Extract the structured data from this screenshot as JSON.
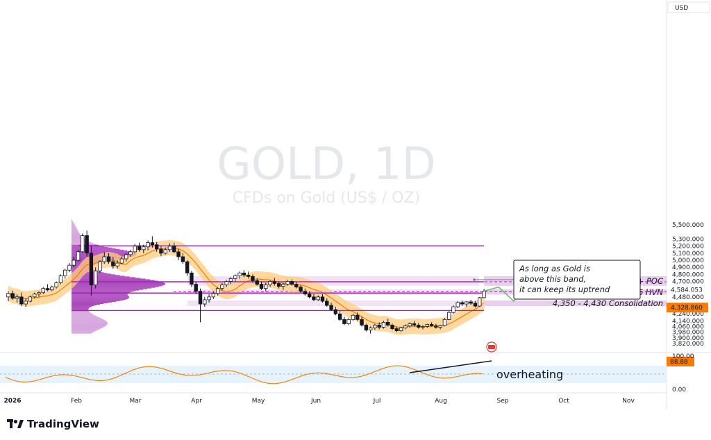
{
  "chart_data": {
    "type": "candlestick",
    "watermark": "GOLD, 1D",
    "subtitle_watermark": "CFDs on Gold (US$ / OZ)",
    "currency": "USD",
    "price_axis": {
      "ylim": [
        3760,
        5680
      ],
      "ticks": [
        "5,500.000",
        "5,300.000",
        "5,200.000",
        "5,100.000",
        "5,000.000",
        "4,900.000",
        "4,800.000",
        "4,700.000",
        "4,480.000",
        "4,360.000",
        "4,240.000",
        "4,140.000",
        "4,060.000",
        "3,980.000",
        "3,900.000",
        "3,820.000"
      ]
    },
    "price_badges": [
      {
        "label": "4,584.053",
        "value": 4584.053,
        "style": "dark"
      },
      {
        "label": "4,328.860",
        "value": 4328.86,
        "style": "orange"
      }
    ],
    "time_axis": [
      "2026",
      "Feb",
      "Mar",
      "Apr",
      "May",
      "Jun",
      "Jul",
      "Aug",
      "Sep",
      "Oct",
      "Nov"
    ],
    "zones": [
      {
        "label": "4,638 - 4,773 High + POC",
        "low": 4638,
        "high": 4773
      },
      {
        "label": "4,513 - 4,586 HVN",
        "low": 4513,
        "high": 4586
      },
      {
        "label": "4,350 - 4,430 Consolidation",
        "low": 4350,
        "high": 4430
      }
    ],
    "levels": [
      5205,
      4695,
      4535,
      4287
    ],
    "annotation": "As long as Gold is\nabove this band,\nit can keep its uptrend",
    "oscillator": {
      "value_label": "88.88",
      "value": 88.88,
      "scale_labels": [
        "100.00",
        "0.00"
      ],
      "label": "overheating"
    },
    "brand": "TradingView",
    "candles_ohlc": [
      [
        4480,
        4560,
        4420,
        4530
      ],
      [
        4530,
        4570,
        4440,
        4460
      ],
      [
        4460,
        4520,
        4400,
        4480
      ],
      [
        4480,
        4540,
        4350,
        4380
      ],
      [
        4380,
        4460,
        4340,
        4420
      ],
      [
        4420,
        4500,
        4400,
        4480
      ],
      [
        4480,
        4540,
        4460,
        4520
      ],
      [
        4520,
        4560,
        4480,
        4540
      ],
      [
        4540,
        4620,
        4520,
        4600
      ],
      [
        4600,
        4660,
        4560,
        4580
      ],
      [
        4580,
        4640,
        4560,
        4620
      ],
      [
        4620,
        4700,
        4600,
        4680
      ],
      [
        4680,
        4800,
        4660,
        4780
      ],
      [
        4780,
        4880,
        4740,
        4860
      ],
      [
        4860,
        4960,
        4830,
        4930
      ],
      [
        4930,
        5050,
        4900,
        5000
      ],
      [
        5000,
        5150,
        4980,
        5120
      ],
      [
        5120,
        5380,
        5100,
        5350
      ],
      [
        5350,
        5420,
        5050,
        5100
      ],
      [
        5100,
        5200,
        4500,
        4650
      ],
      [
        4650,
        4900,
        4600,
        4850
      ],
      [
        4850,
        5000,
        4820,
        4980
      ],
      [
        4980,
        5120,
        4950,
        5050
      ],
      [
        5050,
        5100,
        4950,
        4980
      ],
      [
        4980,
        5050,
        4880,
        4920
      ],
      [
        4920,
        5000,
        4880,
        4960
      ],
      [
        4960,
        5050,
        4940,
        5020
      ],
      [
        5020,
        5100,
        4980,
        5080
      ],
      [
        5080,
        5150,
        5050,
        5120
      ],
      [
        5120,
        5230,
        5100,
        5200
      ],
      [
        5200,
        5250,
        5120,
        5150
      ],
      [
        5150,
        5220,
        5100,
        5190
      ],
      [
        5190,
        5280,
        5140,
        5250
      ],
      [
        5250,
        5340,
        5180,
        5220
      ],
      [
        5220,
        5260,
        5120,
        5160
      ],
      [
        5160,
        5200,
        5060,
        5100
      ],
      [
        5100,
        5180,
        5080,
        5150
      ],
      [
        5150,
        5240,
        5120,
        5200
      ],
      [
        5200,
        5250,
        5100,
        5120
      ],
      [
        5120,
        5160,
        5000,
        5050
      ],
      [
        5050,
        5100,
        4950,
        4980
      ],
      [
        4980,
        5000,
        4780,
        4820
      ],
      [
        4820,
        4850,
        4620,
        4660
      ],
      [
        4660,
        4700,
        4520,
        4560
      ],
      [
        4560,
        4600,
        4120,
        4380
      ],
      [
        4380,
        4480,
        4340,
        4440
      ],
      [
        4440,
        4520,
        4400,
        4480
      ],
      [
        4480,
        4560,
        4450,
        4530
      ],
      [
        4530,
        4620,
        4500,
        4600
      ],
      [
        4600,
        4680,
        4570,
        4650
      ],
      [
        4650,
        4720,
        4620,
        4700
      ],
      [
        4700,
        4760,
        4660,
        4740
      ],
      [
        4740,
        4800,
        4700,
        4780
      ],
      [
        4780,
        4840,
        4740,
        4820
      ],
      [
        4820,
        4860,
        4760,
        4790
      ],
      [
        4790,
        4840,
        4740,
        4770
      ],
      [
        4770,
        4800,
        4680,
        4710
      ],
      [
        4710,
        4740,
        4640,
        4660
      ],
      [
        4660,
        4700,
        4580,
        4600
      ],
      [
        4600,
        4680,
        4560,
        4650
      ],
      [
        4650,
        4720,
        4620,
        4700
      ],
      [
        4700,
        4750,
        4640,
        4670
      ],
      [
        4670,
        4700,
        4600,
        4630
      ],
      [
        4630,
        4680,
        4580,
        4660
      ],
      [
        4660,
        4720,
        4640,
        4700
      ],
      [
        4700,
        4730,
        4640,
        4660
      ],
      [
        4660,
        4690,
        4600,
        4620
      ],
      [
        4620,
        4650,
        4540,
        4560
      ],
      [
        4560,
        4600,
        4500,
        4520
      ],
      [
        4520,
        4560,
        4460,
        4480
      ],
      [
        4480,
        4520,
        4420,
        4440
      ],
      [
        4440,
        4500,
        4420,
        4480
      ],
      [
        4480,
        4520,
        4400,
        4420
      ],
      [
        4420,
        4460,
        4340,
        4360
      ],
      [
        4360,
        4400,
        4280,
        4300
      ],
      [
        4300,
        4340,
        4220,
        4240
      ],
      [
        4240,
        4280,
        4140,
        4160
      ],
      [
        4160,
        4200,
        4080,
        4100
      ],
      [
        4100,
        4180,
        4080,
        4160
      ],
      [
        4160,
        4240,
        4140,
        4220
      ],
      [
        4220,
        4260,
        4140,
        4160
      ],
      [
        4160,
        4200,
        4060,
        4080
      ],
      [
        4080,
        4100,
        3990,
        4010
      ],
      [
        4010,
        4060,
        3960,
        4040
      ],
      [
        4040,
        4100,
        4010,
        4080
      ],
      [
        4080,
        4120,
        4020,
        4050
      ],
      [
        4050,
        4140,
        4030,
        4120
      ],
      [
        4120,
        4170,
        4060,
        4080
      ],
      [
        4080,
        4100,
        4010,
        4030
      ],
      [
        4030,
        4060,
        3980,
        4000
      ],
      [
        4000,
        4050,
        3980,
        4040
      ],
      [
        4040,
        4090,
        4020,
        4070
      ],
      [
        4070,
        4120,
        4040,
        4100
      ],
      [
        4100,
        4140,
        4060,
        4080
      ],
      [
        4080,
        4110,
        4030,
        4050
      ],
      [
        4050,
        4080,
        4020,
        4060
      ],
      [
        4060,
        4100,
        4040,
        4090
      ],
      [
        4090,
        4120,
        4060,
        4070
      ],
      [
        4070,
        4100,
        4030,
        4050
      ],
      [
        4050,
        4080,
        4020,
        4070
      ],
      [
        4070,
        4180,
        4060,
        4160
      ],
      [
        4160,
        4280,
        4150,
        4260
      ],
      [
        4260,
        4360,
        4240,
        4340
      ],
      [
        4340,
        4420,
        4320,
        4400
      ],
      [
        4400,
        4430,
        4350,
        4380
      ],
      [
        4380,
        4420,
        4340,
        4410
      ],
      [
        4410,
        4440,
        4370,
        4390
      ],
      [
        4390,
        4420,
        4330,
        4350
      ],
      [
        4350,
        4480,
        4340,
        4470
      ],
      [
        4470,
        4590,
        4460,
        4560
      ]
    ]
  }
}
